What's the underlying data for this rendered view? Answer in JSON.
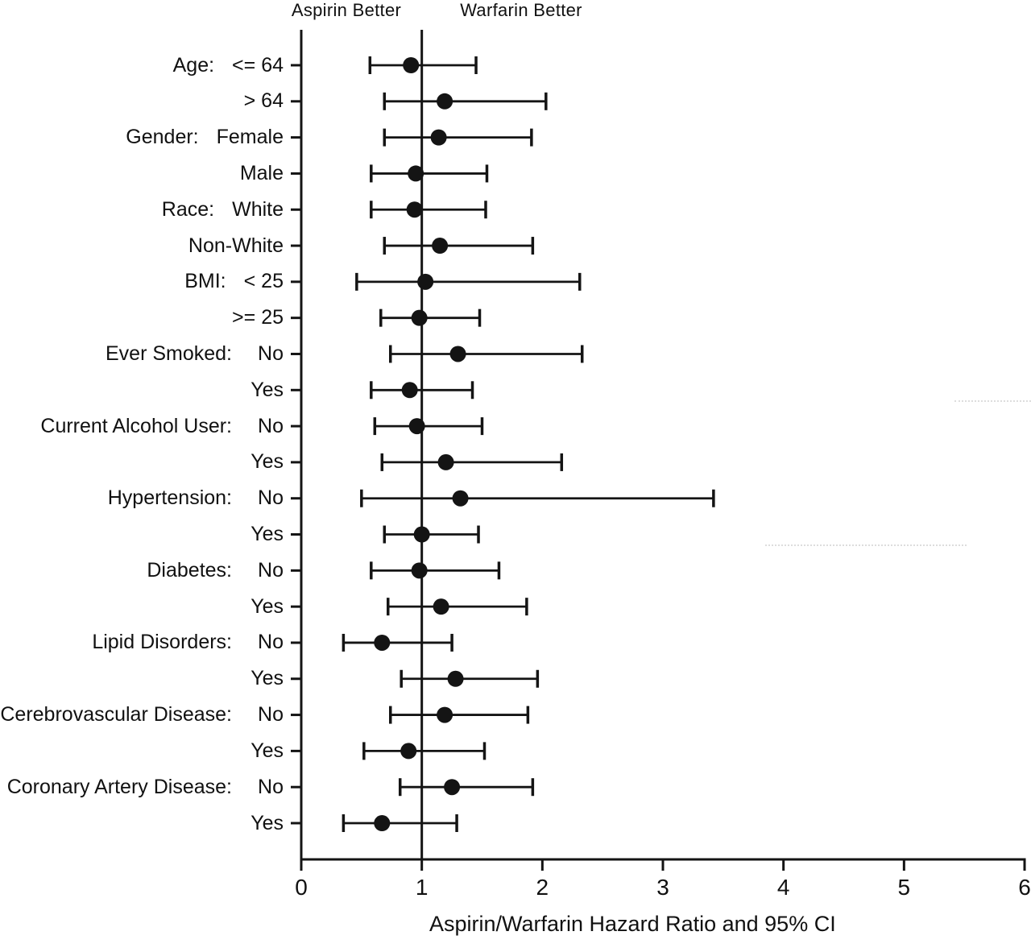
{
  "figure": {
    "ink_color": "#141414",
    "background_color": "#ffffff"
  },
  "chart_data": {
    "type": "scatter",
    "subtype": "forest-plot",
    "title": "",
    "xlabel": "Aspirin/Warfarin Hazard Ratio and 95% CI",
    "ylabel": "",
    "xlim": [
      0,
      6
    ],
    "x_ticks": [
      0,
      1,
      2,
      3,
      4,
      5,
      6
    ],
    "reference_line_x": 1,
    "grid": false,
    "legend_position": "none",
    "column_headers": {
      "left": "Aspirin Better",
      "right": "Warfarin Better"
    },
    "rows": [
      {
        "group": "Age:",
        "level": "<= 64",
        "hr": 0.91,
        "ci_low": 0.57,
        "ci_high": 1.45
      },
      {
        "group": "",
        "level": "> 64",
        "hr": 1.19,
        "ci_low": 0.69,
        "ci_high": 2.03
      },
      {
        "group": "Gender:",
        "level": "Female",
        "hr": 1.14,
        "ci_low": 0.69,
        "ci_high": 1.91
      },
      {
        "group": "",
        "level": "Male",
        "hr": 0.95,
        "ci_low": 0.58,
        "ci_high": 1.54
      },
      {
        "group": "Race:",
        "level": "White",
        "hr": 0.94,
        "ci_low": 0.58,
        "ci_high": 1.53
      },
      {
        "group": "",
        "level": "Non-White",
        "hr": 1.15,
        "ci_low": 0.69,
        "ci_high": 1.92
      },
      {
        "group": "BMI:",
        "level": "< 25",
        "hr": 1.03,
        "ci_low": 0.46,
        "ci_high": 2.31
      },
      {
        "group": "",
        "level": ">= 25",
        "hr": 0.98,
        "ci_low": 0.66,
        "ci_high": 1.48
      },
      {
        "group": "Ever Smoked:",
        "level": "No",
        "hr": 1.3,
        "ci_low": 0.74,
        "ci_high": 2.33
      },
      {
        "group": "",
        "level": "Yes",
        "hr": 0.9,
        "ci_low": 0.58,
        "ci_high": 1.42
      },
      {
        "group": "Current Alcohol User:",
        "level": "No",
        "hr": 0.96,
        "ci_low": 0.61,
        "ci_high": 1.5
      },
      {
        "group": "",
        "level": "Yes",
        "hr": 1.2,
        "ci_low": 0.67,
        "ci_high": 2.16
      },
      {
        "group": "Hypertension:",
        "level": "No",
        "hr": 1.32,
        "ci_low": 0.5,
        "ci_high": 3.42
      },
      {
        "group": "",
        "level": "Yes",
        "hr": 1.0,
        "ci_low": 0.69,
        "ci_high": 1.47
      },
      {
        "group": "Diabetes:",
        "level": "No",
        "hr": 0.98,
        "ci_low": 0.58,
        "ci_high": 1.64
      },
      {
        "group": "",
        "level": "Yes",
        "hr": 1.16,
        "ci_low": 0.72,
        "ci_high": 1.87
      },
      {
        "group": "Lipid Disorders:",
        "level": "No",
        "hr": 0.67,
        "ci_low": 0.35,
        "ci_high": 1.25
      },
      {
        "group": "",
        "level": "Yes",
        "hr": 1.28,
        "ci_low": 0.83,
        "ci_high": 1.96
      },
      {
        "group": "Cerebrovascular Disease:",
        "level": "No",
        "hr": 1.19,
        "ci_low": 0.74,
        "ci_high": 1.88
      },
      {
        "group": "",
        "level": "Yes",
        "hr": 0.89,
        "ci_low": 0.52,
        "ci_high": 1.52
      },
      {
        "group": "Coronary Artery Disease:",
        "level": "No",
        "hr": 1.25,
        "ci_low": 0.82,
        "ci_high": 1.92
      },
      {
        "group": "",
        "level": "Yes",
        "hr": 0.67,
        "ci_low": 0.35,
        "ci_high": 1.29
      }
    ]
  }
}
